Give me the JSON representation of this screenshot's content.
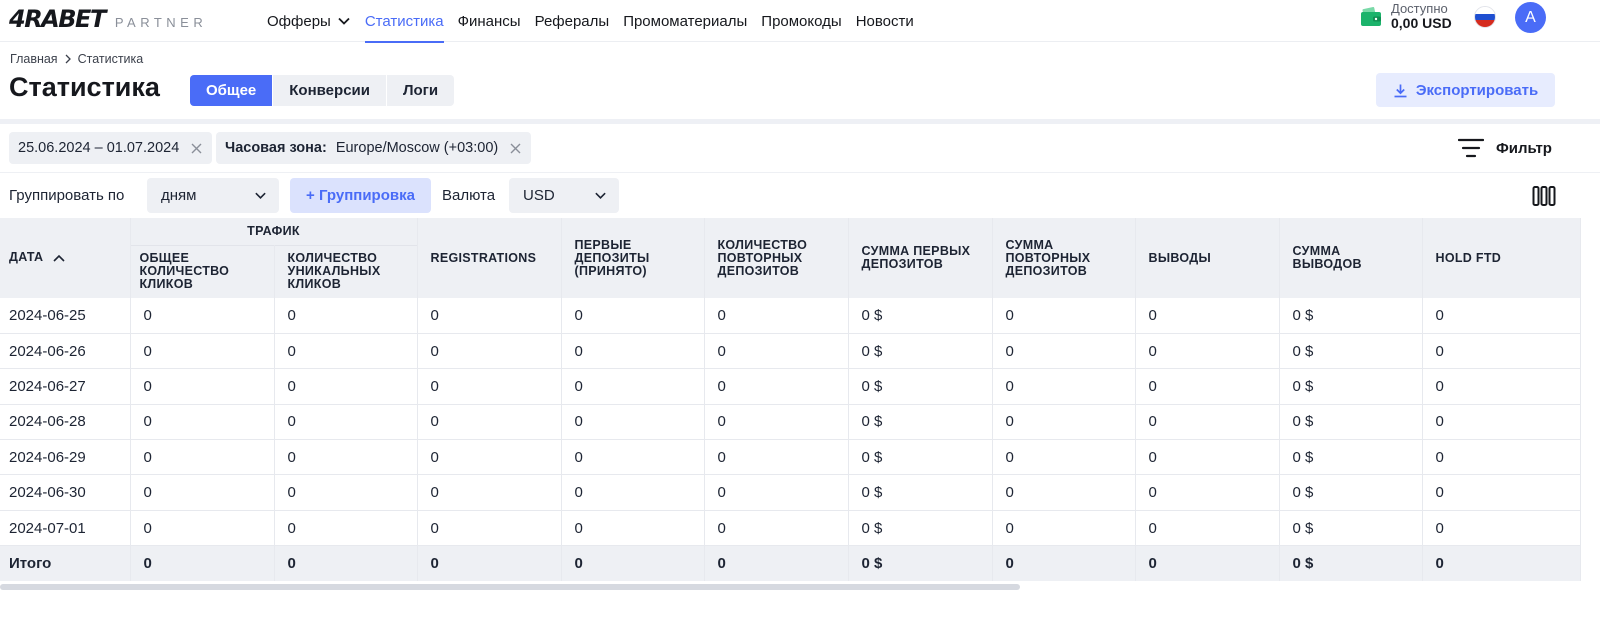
{
  "brand": {
    "logo": "4RABET",
    "sub": "PARTNER",
    "accent": "#4a6cf7"
  },
  "nav": {
    "items": [
      {
        "label": "Офферы",
        "has_dropdown": true
      },
      {
        "label": "Статистика",
        "active": true
      },
      {
        "label": "Финансы"
      },
      {
        "label": "Рефералы"
      },
      {
        "label": "Промоматериалы"
      },
      {
        "label": "Промокоды"
      },
      {
        "label": "Новости"
      }
    ]
  },
  "account": {
    "balance_label": "Доступно",
    "balance_value": "0,00 USD",
    "avatar_letter": "A",
    "language_flag": "ru-flag-icon"
  },
  "breadcrumb": {
    "home": "Главная",
    "current": "Статистика"
  },
  "page": {
    "title": "Статистика",
    "tabs": [
      "Общее",
      "Конверсии",
      "Логи"
    ],
    "active_tab": "Общее",
    "export_label": "Экспортировать"
  },
  "filters": {
    "date_range": "25.06.2024 – 01.07.2024",
    "timezone_label": "Часовая зона:",
    "timezone_value": "Europe/Moscow (+03:00)",
    "filter_label": "Фильтр"
  },
  "grouping": {
    "group_by_label": "Группировать по",
    "group_by_value": "дням",
    "add_group_label": "+ Группировка",
    "currency_label": "Валюта",
    "currency_value": "USD"
  },
  "table": {
    "group_header": "Трафик",
    "date_header": "Дата",
    "columns": [
      "Общее количество кликов",
      "Количество уникальных кликов",
      "Registrations",
      "Первые депозиты (принято)",
      "Количество повторных депозитов",
      "Сумма первых депозитов",
      "Сумма повторных депозитов",
      "Выводы",
      "Сумма выводов",
      "Hold FTD"
    ],
    "rows": [
      [
        "2024-06-25",
        "0",
        "0",
        "0",
        "0",
        "0",
        "0 $",
        "0",
        "0",
        "0 $",
        "0"
      ],
      [
        "2024-06-26",
        "0",
        "0",
        "0",
        "0",
        "0",
        "0 $",
        "0",
        "0",
        "0 $",
        "0"
      ],
      [
        "2024-06-27",
        "0",
        "0",
        "0",
        "0",
        "0",
        "0 $",
        "0",
        "0",
        "0 $",
        "0"
      ],
      [
        "2024-06-28",
        "0",
        "0",
        "0",
        "0",
        "0",
        "0 $",
        "0",
        "0",
        "0 $",
        "0"
      ],
      [
        "2024-06-29",
        "0",
        "0",
        "0",
        "0",
        "0",
        "0 $",
        "0",
        "0",
        "0 $",
        "0"
      ],
      [
        "2024-06-30",
        "0",
        "0",
        "0",
        "0",
        "0",
        "0 $",
        "0",
        "0",
        "0 $",
        "0"
      ],
      [
        "2024-07-01",
        "0",
        "0",
        "0",
        "0",
        "0",
        "0 $",
        "0",
        "0",
        "0 $",
        "0"
      ]
    ],
    "total": [
      "Итого",
      "0",
      "0",
      "0",
      "0",
      "0",
      "0 $",
      "0",
      "0",
      "0 $",
      "0"
    ]
  }
}
